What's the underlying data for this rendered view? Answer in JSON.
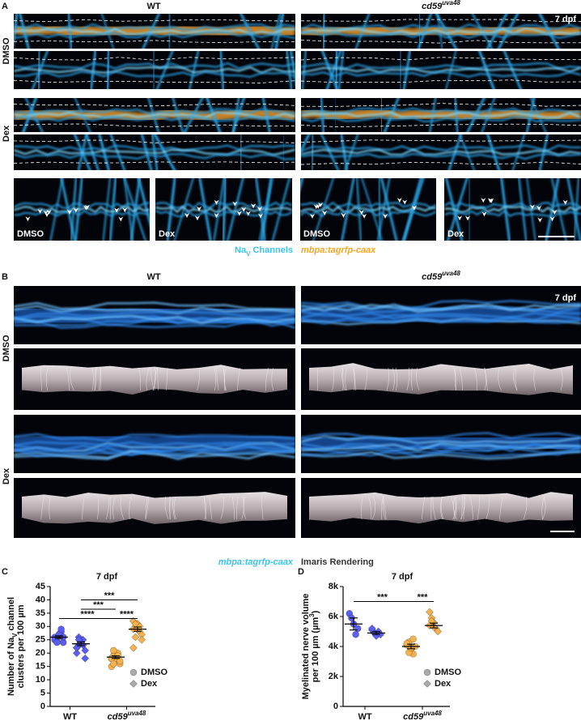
{
  "figure": {
    "panel_a": {
      "label": "A",
      "columns": [
        {
          "name": "WT"
        },
        {
          "name": "cd59",
          "sup": "uva48"
        }
      ],
      "stage": "7 dpf",
      "rows": [
        "DMSO",
        "Dex"
      ],
      "insets": [
        "DMSO",
        "Dex",
        "DMSO",
        "Dex"
      ],
      "legend": [
        {
          "parts": [
            {
              "t": "Na"
            },
            {
              "t": "V",
              "sub": true
            },
            {
              "t": " Channels"
            }
          ],
          "color": "#3cc3f0",
          "italic": false
        },
        {
          "parts": [
            {
              "t": "mbpa:tagrfp-caax"
            }
          ],
          "color": "#f5a623",
          "italic": true
        }
      ]
    },
    "panel_b": {
      "label": "B",
      "columns": [
        {
          "name": "WT"
        },
        {
          "name": "cd59",
          "sup": "uva48"
        }
      ],
      "stage": "7 dpf",
      "rows": [
        "DMSO",
        "Dex"
      ],
      "legend": [
        {
          "parts": [
            {
              "t": "mbpa:tagrfp-caax"
            }
          ],
          "color": "#3cc3f0",
          "italic": true
        },
        {
          "parts": [
            {
              "t": "Imaris Rendering"
            }
          ],
          "color": "#333333",
          "italic": false
        }
      ]
    }
  },
  "chart_data": [
    {
      "type": "strip",
      "panel_label": "C",
      "title": "7 dpf",
      "ylabel": [
        [
          {
            "t": "Number of Na"
          },
          {
            "t": "V",
            "sub": true
          },
          {
            "t": " channel"
          }
        ],
        [
          {
            "t": "clusters per 100 µm"
          }
        ]
      ],
      "categories": [
        {
          "name": "WT"
        },
        {
          "name": "cd59",
          "sup": "uva48"
        }
      ],
      "category_colors": [
        "#5b5ef0",
        "#f7b24e"
      ],
      "ylim": [
        0,
        45
      ],
      "yticks": [
        0,
        5,
        10,
        15,
        20,
        25,
        30,
        35,
        40,
        45
      ],
      "legend": "lower right",
      "legend_color": "#aaaaaa",
      "series": [
        {
          "name": "DMSO",
          "marker": "circle",
          "values": [
            [
              25,
              26,
              27,
              28,
              24,
              26,
              25,
              27,
              29,
              26,
              25,
              24
            ],
            [
              18,
              19,
              17,
              20,
              16,
              15,
              21,
              18,
              19,
              17,
              18,
              16
            ]
          ],
          "means": [
            26,
            18.5
          ],
          "sems": [
            0.5,
            0.5
          ]
        },
        {
          "name": "Dex",
          "marker": "diamond",
          "values": [
            [
              22,
              23,
              24,
              25,
              21,
              20,
              26,
              24,
              23,
              18,
              22,
              25
            ],
            [
              29,
              30,
              31,
              28,
              27,
              32,
              26,
              29,
              30,
              25,
              22,
              31
            ]
          ],
          "means": [
            23.5,
            29
          ],
          "sems": [
            0.7,
            0.8
          ]
        }
      ],
      "annotations": [
        {
          "label": "***",
          "from": [
            0,
            1
          ],
          "to": [
            1,
            1
          ],
          "y": 40
        },
        {
          "label": "***",
          "from": [
            0,
            1
          ],
          "to": [
            1,
            0
          ],
          "y": 36.5
        },
        {
          "label": "****",
          "from": [
            0,
            0
          ],
          "to": [
            1,
            0
          ],
          "y": 33
        },
        {
          "label": "****",
          "from": [
            1,
            0
          ],
          "to": [
            1,
            1
          ],
          "y": 33
        }
      ]
    },
    {
      "type": "strip",
      "panel_label": "D",
      "title": "7 dpf",
      "ylabel": [
        [
          {
            "t": "Myelinated nerve volume"
          }
        ],
        [
          {
            "t": "per 100 µm (µm"
          },
          {
            "t": "3",
            "sup": true
          },
          {
            "t": ")"
          }
        ]
      ],
      "categories": [
        {
          "name": "WT"
        },
        {
          "name": "cd59",
          "sup": "uva48"
        }
      ],
      "category_colors": [
        "#5b5ef0",
        "#f7b24e"
      ],
      "ylim": [
        0,
        8000
      ],
      "yticks": [
        0,
        {
          "value": 2000,
          "label": "2k"
        },
        {
          "value": 4000,
          "label": "4k"
        },
        {
          "value": 6000,
          "label": "6k"
        },
        {
          "value": 8000,
          "label": "8k"
        }
      ],
      "legend": "lower right",
      "legend_color": "#aaaaaa",
      "series": [
        {
          "name": "DMSO",
          "marker": "circle",
          "values": [
            [
              6200,
              5900,
              5500,
              4800,
              5200
            ],
            [
              4100,
              4300,
              3800,
              3500,
              4000,
              4200,
              3600,
              3900,
              4500
            ]
          ],
          "means": [
            5500,
            4000
          ],
          "sems": [
            400,
            150
          ]
        },
        {
          "name": "Dex",
          "marker": "diamond",
          "values": [
            [
              5100,
              4900,
              4700,
              5000,
              4800,
              5200
            ],
            [
              6300,
              5900,
              5600,
              5200,
              5000,
              5400,
              5700,
              5300
            ]
          ],
          "means": [
            4900,
            5400
          ],
          "sems": [
            100,
            160
          ]
        }
      ],
      "annotations": [
        {
          "label": "***",
          "from": [
            0,
            0
          ],
          "to": [
            1,
            0
          ],
          "y": 7000
        },
        {
          "label": "***",
          "from": [
            1,
            0
          ],
          "to": [
            1,
            1
          ],
          "y": 7000
        }
      ]
    }
  ]
}
